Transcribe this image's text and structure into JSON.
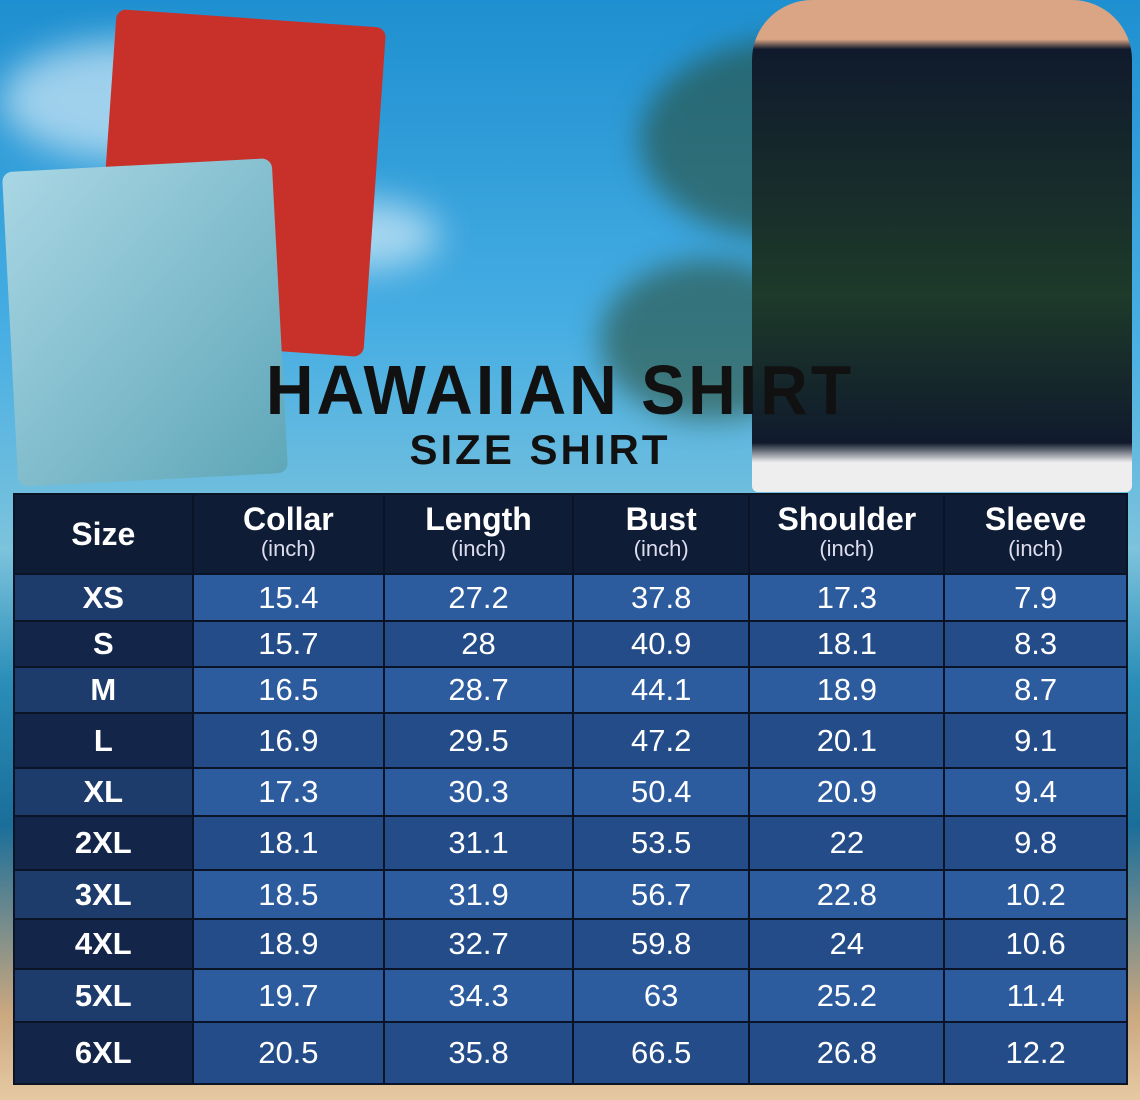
{
  "title": "HAWAIIAN SHIRT",
  "subtitle": "SIZE SHIRT",
  "colors": {
    "header_bg": "#0f1c36",
    "row_light": "#2c5b9e",
    "row_dark": "#244c88",
    "size_col": "#13264a"
  },
  "table": {
    "headers": [
      {
        "label": "Size",
        "unit": ""
      },
      {
        "label": "Collar",
        "unit": "(inch)"
      },
      {
        "label": "Length",
        "unit": "(inch)"
      },
      {
        "label": "Bust",
        "unit": "(inch)"
      },
      {
        "label": "Shoulder",
        "unit": "(inch)"
      },
      {
        "label": "Sleeve",
        "unit": "(inch)"
      }
    ],
    "rows": [
      [
        "XS",
        "15.4",
        "27.2",
        "37.8",
        "17.3",
        "7.9"
      ],
      [
        "S",
        "15.7",
        "28",
        "40.9",
        "18.1",
        "8.3"
      ],
      [
        "M",
        "16.5",
        "28.7",
        "44.1",
        "18.9",
        "8.7"
      ],
      [
        "L",
        "16.9",
        "29.5",
        "47.2",
        "20.1",
        "9.1"
      ],
      [
        "XL",
        "17.3",
        "30.3",
        "50.4",
        "20.9",
        "9.4"
      ],
      [
        "2XL",
        "18.1",
        "31.1",
        "53.5",
        "22",
        "9.8"
      ],
      [
        "3XL",
        "18.5",
        "31.9",
        "56.7",
        "22.8",
        "10.2"
      ],
      [
        "4XL",
        "18.9",
        "32.7",
        "59.8",
        "24",
        "10.6"
      ],
      [
        "5XL",
        "19.7",
        "34.3",
        "63",
        "25.2",
        "11.4"
      ],
      [
        "6XL",
        "20.5",
        "35.8",
        "66.5",
        "26.8",
        "12.2"
      ]
    ]
  }
}
